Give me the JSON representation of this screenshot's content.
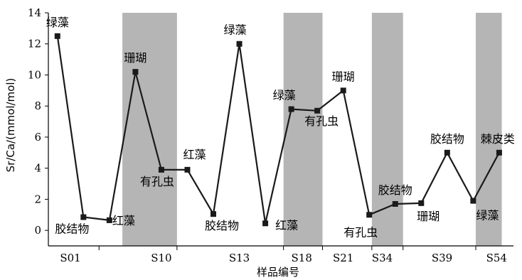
{
  "chart_data": {
    "type": "line",
    "xlabel": "样品编号",
    "ylabel": "Sr/Ca/(mmol/mol)",
    "ylim": [
      -1,
      14
    ],
    "yticks": [
      0,
      2,
      4,
      6,
      8,
      10,
      12,
      14
    ],
    "grid": false,
    "legend": "none",
    "colors": {
      "line": "#1a1a1a",
      "marker": "#1a1a1a",
      "band": "#b5b5b5"
    },
    "points": [
      {
        "x": 1,
        "y": 12.5,
        "label": "绿藻"
      },
      {
        "x": 2,
        "y": 0.85,
        "label": "胶结物"
      },
      {
        "x": 3,
        "y": 0.65,
        "label": "红藻"
      },
      {
        "x": 4,
        "y": 10.2,
        "label": "珊瑚"
      },
      {
        "x": 5,
        "y": 3.9,
        "label": "有孔虫"
      },
      {
        "x": 6,
        "y": 3.9,
        "label": "红藻"
      },
      {
        "x": 7,
        "y": 1.05,
        "label": "胶结物"
      },
      {
        "x": 8,
        "y": 12.0,
        "label": "绿藻"
      },
      {
        "x": 9,
        "y": 0.45,
        "label": "红藻"
      },
      {
        "x": 10,
        "y": 7.8,
        "label": "绿藻"
      },
      {
        "x": 11,
        "y": 7.7,
        "label": "有孔虫"
      },
      {
        "x": 12,
        "y": 9.0,
        "label": "珊瑚"
      },
      {
        "x": 13,
        "y": 1.0,
        "label": "有孔虫"
      },
      {
        "x": 14,
        "y": 1.7,
        "label": "胶结物"
      },
      {
        "x": 15,
        "y": 1.75,
        "label": "珊瑚"
      },
      {
        "x": 16,
        "y": 5.0,
        "label": "胶结物"
      },
      {
        "x": 17,
        "y": 1.9,
        "label": "绿藻"
      },
      {
        "x": 18,
        "y": 5.0,
        "label": "棘皮类"
      }
    ],
    "categories": [
      {
        "name": "S01",
        "x": 1.5
      },
      {
        "name": "S10",
        "x": 5.0
      },
      {
        "name": "S13",
        "x": 8.0
      },
      {
        "name": "S18",
        "x": 10.4
      },
      {
        "name": "S21",
        "x": 12.0
      },
      {
        "name": "S34",
        "x": 13.5
      },
      {
        "name": "S39",
        "x": 15.8
      },
      {
        "name": "S54",
        "x": 17.9
      }
    ],
    "bands": [
      {
        "x0": 3.5,
        "x1": 5.6
      },
      {
        "x0": 9.7,
        "x1": 11.2
      },
      {
        "x0": 13.1,
        "x1": 14.3
      },
      {
        "x0": 17.1,
        "x1": 18.1
      }
    ],
    "separators": [
      2.6,
      5.6,
      9.7,
      11.2,
      13.1,
      14.3,
      17.1
    ]
  }
}
